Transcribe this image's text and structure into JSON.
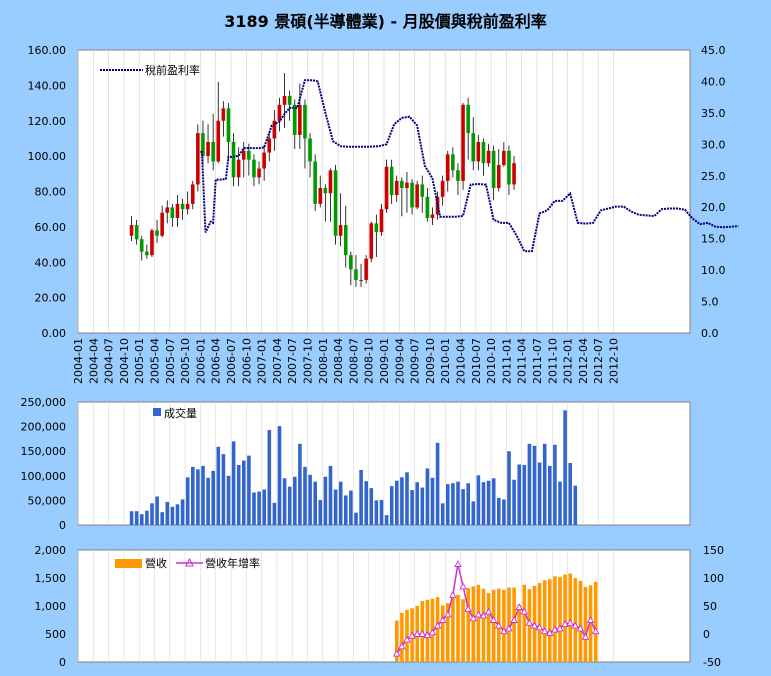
{
  "title": "3189 景碩(半導體業) - 月股價與稅前盈利率",
  "colors": {
    "up": "#cc0000",
    "down": "#009900",
    "ratio": "#000080",
    "volume": "#3366cc",
    "revenue": "#ff9900",
    "growth": "#cc33cc"
  },
  "chart_data": [
    {
      "name": "price",
      "type": "candlestick",
      "ylim": [
        0,
        160
      ],
      "ylim_right": [
        0,
        45
      ],
      "yticks": [
        "0.00",
        "20.00",
        "40.00",
        "60.00",
        "80.00",
        "100.00",
        "120.00",
        "140.00",
        "160.00"
      ],
      "yticks_right": [
        "0.0",
        "5.0",
        "10.0",
        "15.0",
        "20.0",
        "25.0",
        "30.0",
        "35.0",
        "40.0",
        "45.0"
      ],
      "xticks": [
        "2004-01",
        "2004-04",
        "2004-07",
        "2004-10",
        "2005-01",
        "2005-04",
        "2005-07",
        "2005-10",
        "2006-01",
        "2006-04",
        "2006-07",
        "2006-10",
        "2007-01",
        "2007-04",
        "2007-07",
        "2007-10",
        "2008-01",
        "2008-04",
        "2008-07",
        "2008-10",
        "2009-01",
        "2009-04",
        "2009-07",
        "2009-10",
        "2010-01",
        "2010-04",
        "2010-07",
        "2010-10",
        "2011-01",
        "2011-04",
        "2011-07",
        "2011-10",
        "2012-01",
        "2012-04",
        "2012-07",
        "2012-10"
      ],
      "legend": "稅前盈利率",
      "start_month": "2004-11",
      "candles": [
        [
          55,
          61,
          66,
          52
        ],
        [
          61,
          53,
          64,
          50
        ],
        [
          53,
          46,
          55,
          41
        ],
        [
          46,
          44,
          50,
          42
        ],
        [
          44,
          58,
          59,
          43
        ],
        [
          58,
          55,
          64,
          51
        ],
        [
          55,
          68,
          72,
          54
        ],
        [
          68,
          71,
          75,
          62
        ],
        [
          71,
          65,
          73,
          60
        ],
        [
          65,
          73,
          78,
          60
        ],
        [
          73,
          70,
          76,
          64
        ],
        [
          70,
          73,
          80,
          67
        ],
        [
          73,
          84,
          86,
          70
        ],
        [
          84,
          113,
          118,
          80
        ],
        [
          113,
          100,
          120,
          95
        ],
        [
          100,
          108,
          118,
          96
        ],
        [
          108,
          97,
          124,
          92
        ],
        [
          97,
          120,
          142,
          96
        ],
        [
          120,
          127,
          131,
          111
        ],
        [
          127,
          108,
          130,
          98
        ],
        [
          108,
          88,
          113,
          83
        ],
        [
          88,
          98,
          105,
          83
        ],
        [
          98,
          103,
          108,
          88
        ],
        [
          103,
          98,
          107,
          89
        ],
        [
          98,
          88,
          101,
          83
        ],
        [
          88,
          93,
          97,
          84
        ],
        [
          93,
          102,
          106,
          86
        ],
        [
          102,
          110,
          114,
          97
        ],
        [
          110,
          120,
          126,
          103
        ],
        [
          120,
          129,
          133,
          114
        ],
        [
          129,
          134,
          147,
          116
        ],
        [
          134,
          129,
          137,
          120
        ],
        [
          129,
          112,
          132,
          104
        ],
        [
          112,
          129,
          141,
          104
        ],
        [
          129,
          110,
          132,
          93
        ],
        [
          110,
          97,
          113,
          88
        ],
        [
          97,
          73,
          101,
          69
        ],
        [
          73,
          82,
          89,
          71
        ],
        [
          82,
          79,
          84,
          63
        ],
        [
          79,
          92,
          93,
          63
        ],
        [
          92,
          55,
          95,
          50
        ],
        [
          55,
          61,
          79,
          49
        ],
        [
          61,
          44,
          72,
          37
        ],
        [
          44,
          36,
          46,
          27
        ],
        [
          36,
          30,
          44,
          26
        ],
        [
          30,
          30,
          39,
          26
        ],
        [
          30,
          42,
          44,
          28
        ],
        [
          42,
          62,
          63,
          40
        ],
        [
          62,
          57,
          67,
          43
        ],
        [
          57,
          70,
          73,
          55
        ],
        [
          70,
          94,
          98,
          68
        ],
        [
          94,
          78,
          98,
          73
        ],
        [
          78,
          86,
          89,
          74
        ],
        [
          86,
          82,
          88,
          66
        ],
        [
          82,
          85,
          91,
          68
        ],
        [
          85,
          71,
          87,
          67
        ],
        [
          71,
          84,
          86,
          70
        ],
        [
          84,
          77,
          89,
          68
        ],
        [
          77,
          65,
          82,
          63
        ],
        [
          65,
          67,
          71,
          61
        ],
        [
          67,
          77,
          80,
          64
        ],
        [
          77,
          86,
          89,
          72
        ],
        [
          86,
          101,
          103,
          80
        ],
        [
          101,
          92,
          105,
          88
        ],
        [
          92,
          86,
          96,
          78
        ],
        [
          86,
          129,
          130,
          81
        ],
        [
          129,
          113,
          133,
          98
        ],
        [
          113,
          97,
          122,
          92
        ],
        [
          97,
          108,
          112,
          92
        ],
        [
          108,
          96,
          110,
          89
        ],
        [
          96,
          103,
          107,
          94
        ],
        [
          103,
          82,
          106,
          75
        ],
        [
          82,
          95,
          104,
          80
        ],
        [
          95,
          103,
          108,
          94
        ],
        [
          103,
          84,
          106,
          78
        ],
        [
          84,
          96,
          100,
          81
        ]
      ],
      "ratio": [
        [
          24,
          28.8
        ],
        [
          24.3,
          28.8
        ],
        [
          25,
          16
        ],
        [
          26,
          17.7
        ],
        [
          26.5,
          17.5
        ],
        [
          27,
          24.4
        ],
        [
          28,
          24.4
        ],
        [
          29,
          24.5
        ],
        [
          29.5,
          28
        ],
        [
          30.5,
          28
        ],
        [
          31.5,
          28.2
        ],
        [
          32.5,
          29.4
        ],
        [
          33.5,
          29.4
        ],
        [
          34.5,
          29.4
        ],
        [
          35.5,
          29.4
        ],
        [
          36.5,
          29.5
        ],
        [
          38,
          33
        ],
        [
          39.5,
          33.6
        ],
        [
          40.5,
          34.8
        ],
        [
          41.5,
          35.8
        ],
        [
          43,
          35.8
        ],
        [
          44.5,
          40.2
        ],
        [
          46,
          40.2
        ],
        [
          47,
          40
        ],
        [
          48.5,
          35
        ],
        [
          50,
          30.5
        ],
        [
          51.5,
          29.7
        ],
        [
          53,
          29.6
        ],
        [
          55,
          29.6
        ],
        [
          57,
          29.6
        ],
        [
          59,
          29.7
        ],
        [
          60.5,
          30
        ],
        [
          62,
          33.2
        ],
        [
          63.5,
          34.2
        ],
        [
          65,
          34.4
        ],
        [
          66.5,
          33
        ],
        [
          68,
          26.6
        ],
        [
          69.5,
          24.6
        ],
        [
          71,
          18.5
        ],
        [
          72.5,
          18.5
        ],
        [
          74,
          18.5
        ],
        [
          75.5,
          18.6
        ],
        [
          77,
          23.6
        ],
        [
          78.5,
          23.7
        ],
        [
          80,
          23.6
        ],
        [
          81.5,
          18
        ],
        [
          83,
          17.5
        ],
        [
          84.5,
          17.5
        ],
        [
          86,
          15.5
        ],
        [
          87.5,
          13
        ],
        [
          89,
          13
        ],
        [
          90.5,
          19
        ],
        [
          92,
          19.5
        ],
        [
          93.5,
          21
        ],
        [
          95,
          21
        ],
        [
          96.5,
          22.2
        ],
        [
          98,
          17.5
        ],
        [
          99.5,
          17.4
        ],
        [
          101,
          17.5
        ],
        [
          102.5,
          19.5
        ],
        [
          104,
          19.8
        ],
        [
          105.5,
          20.1
        ],
        [
          107,
          20.1
        ],
        [
          108.5,
          19.3
        ],
        [
          110,
          18.8
        ],
        [
          111.5,
          18.7
        ],
        [
          113,
          18.6
        ],
        [
          114.5,
          19.7
        ],
        [
          116,
          19.8
        ],
        [
          117.5,
          19.8
        ],
        [
          119,
          19.6
        ],
        [
          120.5,
          18.2
        ],
        [
          122,
          17.3
        ],
        [
          123.5,
          17.5
        ],
        [
          125,
          16.9
        ],
        [
          126.5,
          16.8
        ],
        [
          128,
          16.9
        ],
        [
          129.5,
          17
        ]
      ]
    },
    {
      "name": "volume",
      "type": "bar",
      "ylim": [
        0,
        250000
      ],
      "yticks": [
        "0",
        "50,000",
        "100,000",
        "150,000",
        "200,000",
        "250,000"
      ],
      "legend": "成交量",
      "values": [
        28000,
        28000,
        22000,
        29000,
        44000,
        58000,
        26000,
        47000,
        37000,
        42000,
        52000,
        97000,
        118000,
        113000,
        120000,
        96000,
        110000,
        159000,
        144000,
        100000,
        170000,
        122000,
        131000,
        141000,
        66000,
        68000,
        72000,
        193000,
        45000,
        201000,
        95000,
        78000,
        98000,
        165000,
        118000,
        102000,
        88000,
        51000,
        98000,
        120000,
        72000,
        88000,
        60000,
        70000,
        25000,
        112000,
        89000,
        75000,
        50000,
        51000,
        20000,
        79000,
        90000,
        97000,
        107000,
        71000,
        87000,
        76000,
        115000,
        96000,
        167000,
        44000,
        83000,
        85000,
        88000,
        73000,
        85000,
        48000,
        101000,
        87000,
        90000,
        95000,
        55000,
        52000,
        150000,
        92000,
        123000,
        122000,
        165000,
        161000,
        127000,
        165000,
        120000,
        163000,
        88000,
        233000,
        126000,
        80000
      ]
    },
    {
      "name": "revenue",
      "type": "bar+line",
      "ylim": [
        0,
        2000
      ],
      "ylim_right": [
        -50,
        150
      ],
      "yticks": [
        "0",
        "500",
        "1,000",
        "1,500",
        "2,000"
      ],
      "yticks_right": [
        "-50",
        "0",
        "50",
        "100",
        "150"
      ],
      "legend": [
        "營收",
        "營收年增率"
      ],
      "start_index": 52,
      "revenue": [
        740,
        880,
        930,
        960,
        1000,
        1090,
        1110,
        1130,
        1160,
        1010,
        1050,
        1240,
        1200,
        1120,
        1320,
        1350,
        1380,
        1310,
        1230,
        1290,
        1310,
        1290,
        1330,
        1330,
        1020,
        1380,
        1300,
        1360,
        1410,
        1460,
        1480,
        1530,
        1520,
        1560,
        1580,
        1500,
        1450,
        1340,
        1370,
        1430
      ],
      "growth": [
        -35,
        -22,
        -10,
        -3,
        0,
        0,
        -2,
        3,
        15,
        25,
        35,
        70,
        125,
        85,
        45,
        28,
        35,
        33,
        40,
        25,
        15,
        5,
        10,
        25,
        48,
        40,
        20,
        15,
        12,
        5,
        2,
        8,
        10,
        18,
        20,
        15,
        10,
        -5,
        25,
        5
      ]
    }
  ]
}
